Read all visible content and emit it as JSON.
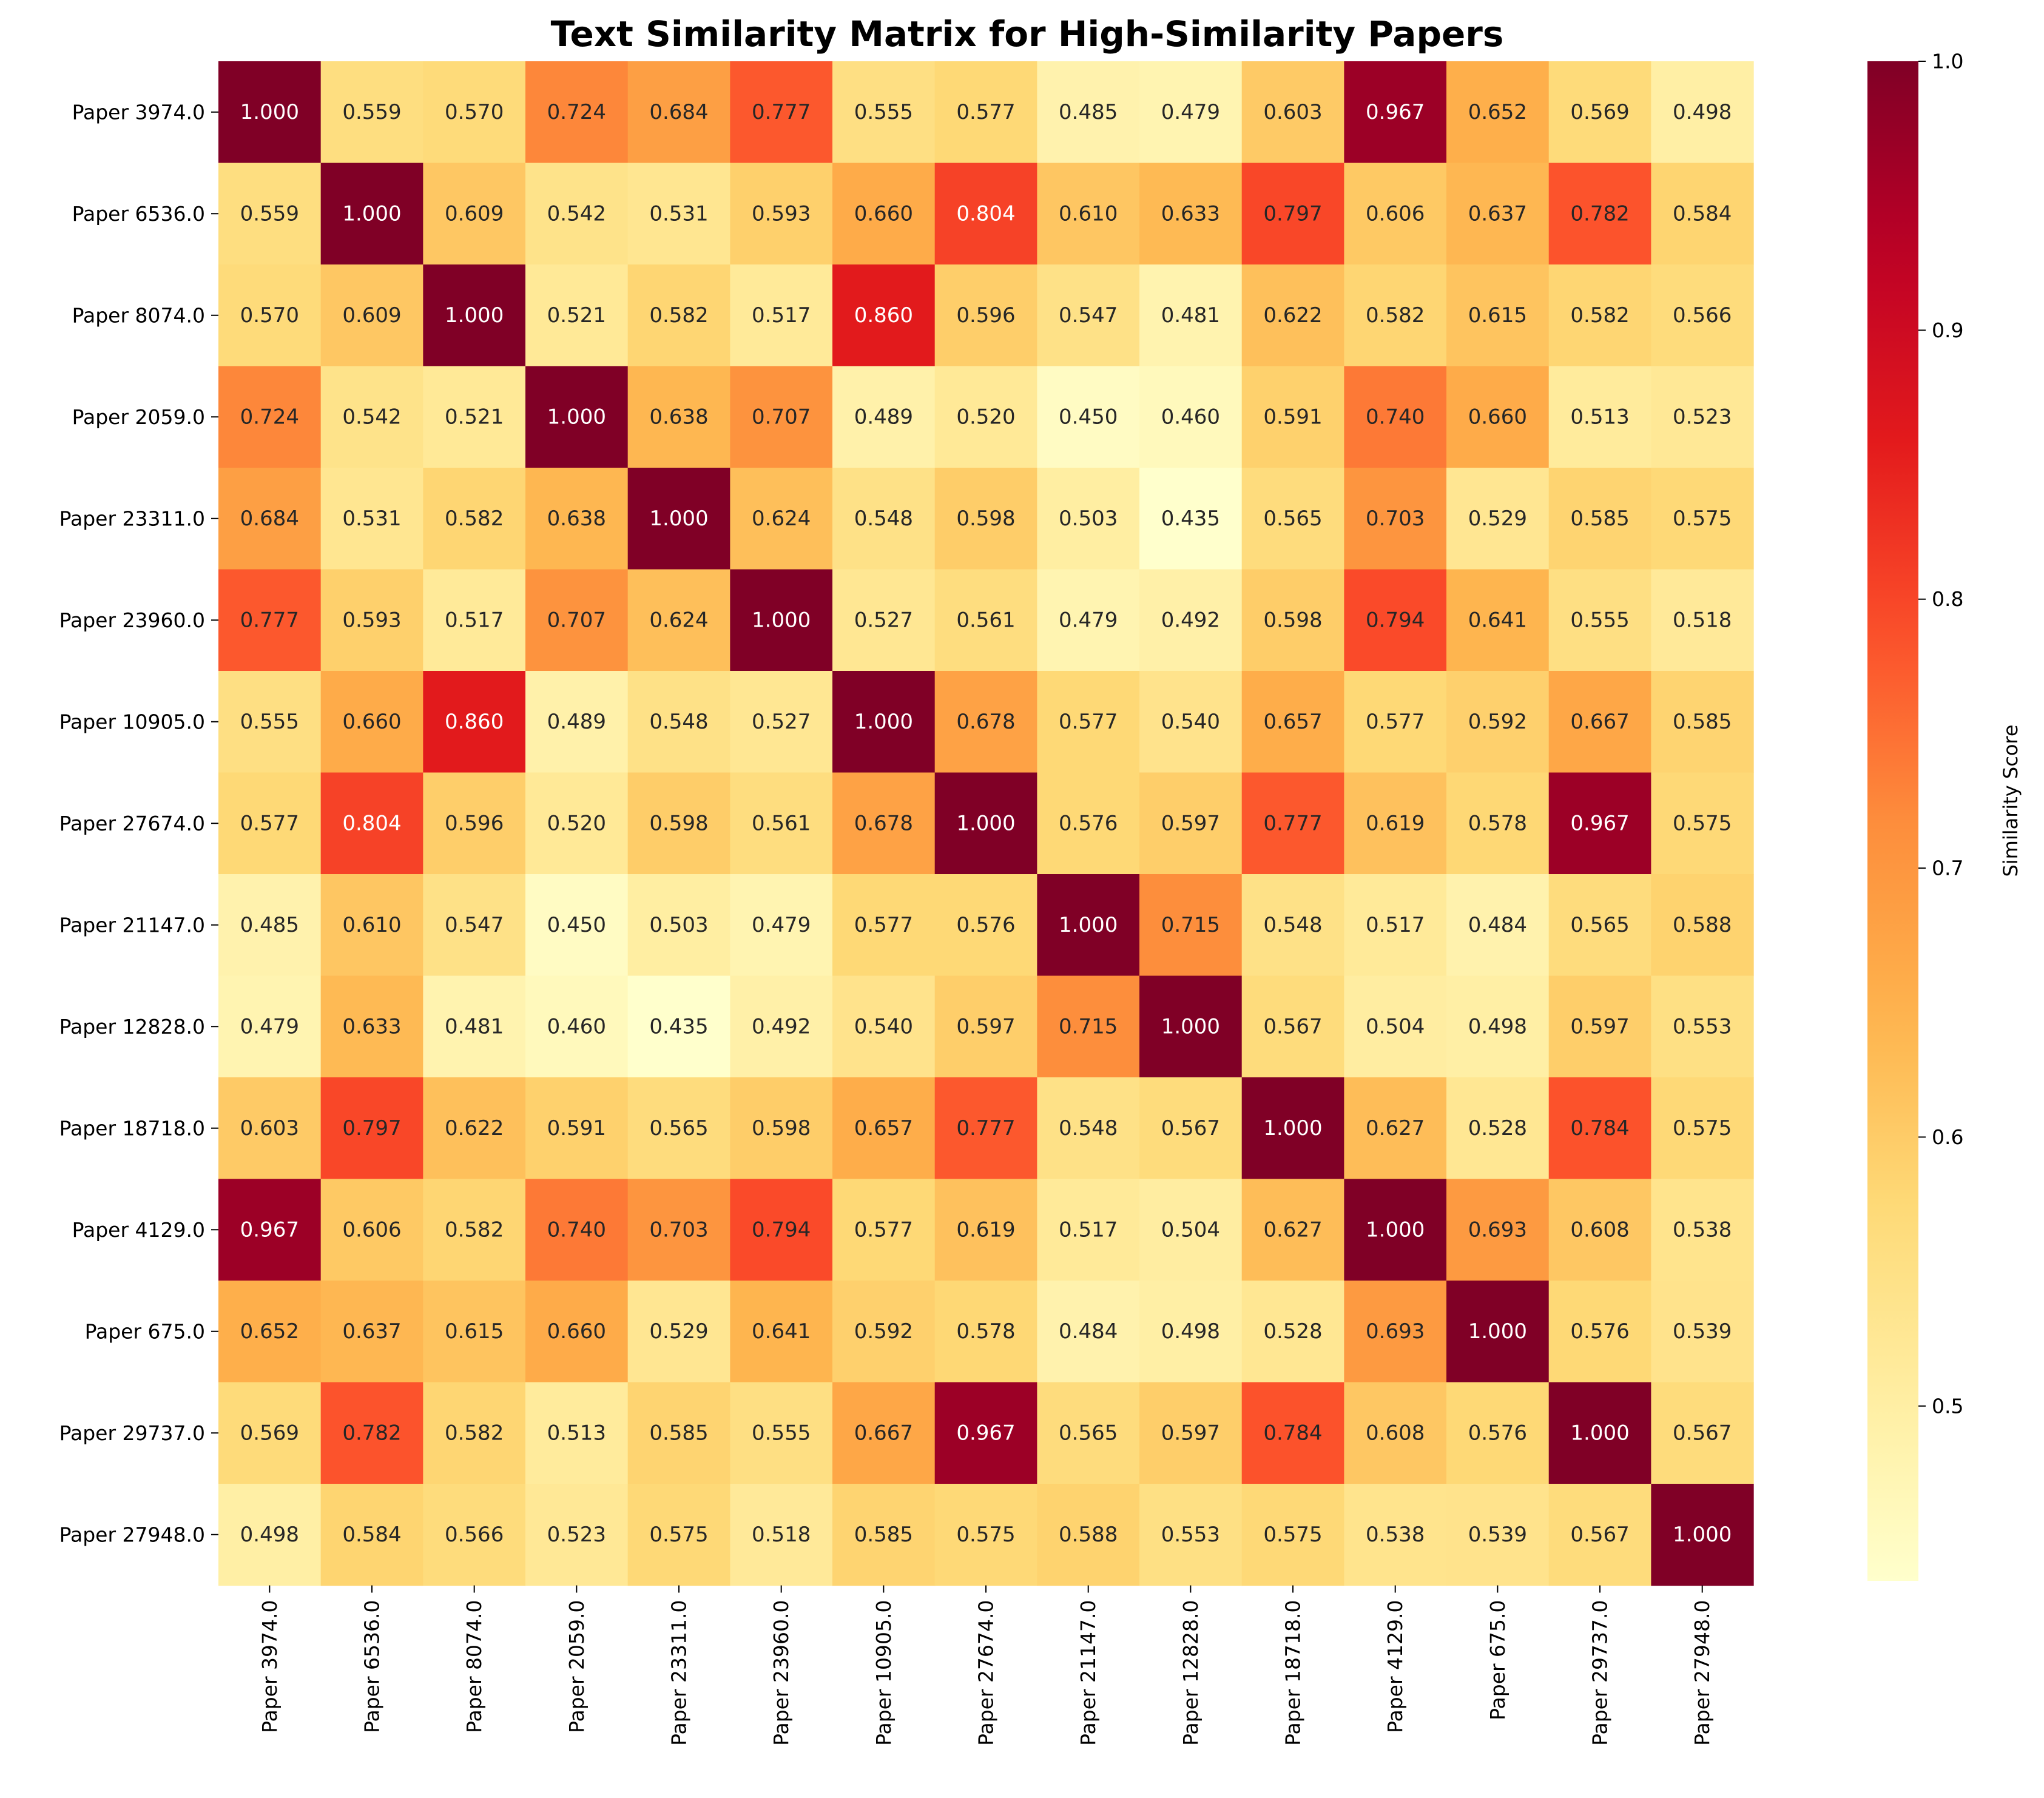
{
  "chart_data": {
    "type": "heatmap",
    "title": "Text Similarity Matrix for High-Similarity Papers",
    "xlabel": "",
    "ylabel": "",
    "colorbar_label": "Similarity Score",
    "colormap": "YlOrRd",
    "vmin": 0.435,
    "vmax": 1.0,
    "colorbar_ticks": [
      "0.5",
      "0.6",
      "0.7",
      "0.8",
      "0.9",
      "1.0"
    ],
    "colorbar_tick_values": [
      0.5,
      0.6,
      0.7,
      0.8,
      0.9,
      1.0
    ],
    "annotation_format": "3 decimals",
    "labels": [
      "Paper 3974.0",
      "Paper 6536.0",
      "Paper 8074.0",
      "Paper 2059.0",
      "Paper 23311.0",
      "Paper 23960.0",
      "Paper 10905.0",
      "Paper 27674.0",
      "Paper 21147.0",
      "Paper 12828.0",
      "Paper 18718.0",
      "Paper 4129.0",
      "Paper 675.0",
      "Paper 29737.0",
      "Paper 27948.0"
    ],
    "matrix": [
      [
        1.0,
        0.559,
        0.57,
        0.724,
        0.684,
        0.777,
        0.555,
        0.577,
        0.485,
        0.479,
        0.603,
        0.967,
        0.652,
        0.569,
        0.498
      ],
      [
        0.559,
        1.0,
        0.609,
        0.542,
        0.531,
        0.593,
        0.66,
        0.804,
        0.61,
        0.633,
        0.797,
        0.606,
        0.637,
        0.782,
        0.584
      ],
      [
        0.57,
        0.609,
        1.0,
        0.521,
        0.582,
        0.517,
        0.86,
        0.596,
        0.547,
        0.481,
        0.622,
        0.582,
        0.615,
        0.582,
        0.566
      ],
      [
        0.724,
        0.542,
        0.521,
        1.0,
        0.638,
        0.707,
        0.489,
        0.52,
        0.45,
        0.46,
        0.591,
        0.74,
        0.66,
        0.513,
        0.523
      ],
      [
        0.684,
        0.531,
        0.582,
        0.638,
        1.0,
        0.624,
        0.548,
        0.598,
        0.503,
        0.435,
        0.565,
        0.703,
        0.529,
        0.585,
        0.575
      ],
      [
        0.777,
        0.593,
        0.517,
        0.707,
        0.624,
        1.0,
        0.527,
        0.561,
        0.479,
        0.492,
        0.598,
        0.794,
        0.641,
        0.555,
        0.518
      ],
      [
        0.555,
        0.66,
        0.86,
        0.489,
        0.548,
        0.527,
        1.0,
        0.678,
        0.577,
        0.54,
        0.657,
        0.577,
        0.592,
        0.667,
        0.585
      ],
      [
        0.577,
        0.804,
        0.596,
        0.52,
        0.598,
        0.561,
        0.678,
        1.0,
        0.576,
        0.597,
        0.777,
        0.619,
        0.578,
        0.967,
        0.575
      ],
      [
        0.485,
        0.61,
        0.547,
        0.45,
        0.503,
        0.479,
        0.577,
        0.576,
        1.0,
        0.715,
        0.548,
        0.517,
        0.484,
        0.565,
        0.588
      ],
      [
        0.479,
        0.633,
        0.481,
        0.46,
        0.435,
        0.492,
        0.54,
        0.597,
        0.715,
        1.0,
        0.567,
        0.504,
        0.498,
        0.597,
        0.553
      ],
      [
        0.603,
        0.797,
        0.622,
        0.591,
        0.565,
        0.598,
        0.657,
        0.777,
        0.548,
        0.567,
        1.0,
        0.627,
        0.528,
        0.784,
        0.575
      ],
      [
        0.967,
        0.606,
        0.582,
        0.74,
        0.703,
        0.794,
        0.577,
        0.619,
        0.517,
        0.504,
        0.627,
        1.0,
        0.693,
        0.608,
        0.538
      ],
      [
        0.652,
        0.637,
        0.615,
        0.66,
        0.529,
        0.641,
        0.592,
        0.578,
        0.484,
        0.498,
        0.528,
        0.693,
        1.0,
        0.576,
        0.539
      ],
      [
        0.569,
        0.782,
        0.582,
        0.513,
        0.585,
        0.555,
        0.667,
        0.967,
        0.565,
        0.597,
        0.784,
        0.608,
        0.576,
        1.0,
        0.567
      ],
      [
        0.498,
        0.584,
        0.566,
        0.523,
        0.575,
        0.518,
        0.585,
        0.575,
        0.588,
        0.553,
        0.575,
        0.538,
        0.539,
        0.567,
        1.0
      ]
    ]
  }
}
